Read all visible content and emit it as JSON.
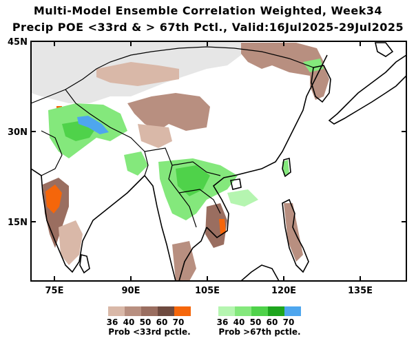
{
  "title_line1": "Multi-Model Ensemble Correlation Weighted, Week34",
  "title_line2": "Precip POE <33rd & > 67th Pctl., Valid:16Jul2025-29Jul2025",
  "lat_labels": [
    "45N",
    "30N",
    "15N"
  ],
  "lon_labels": [
    "75E",
    "90E",
    "105E",
    "120E",
    "135E"
  ],
  "legend_below": {
    "caption": "Prob <33rd pctle.",
    "values": [
      "36",
      "40",
      "50",
      "60",
      "70"
    ],
    "colors": [
      "#d9b8a8",
      "#b88f80",
      "#9a6e60",
      "#6e4a3f",
      "#f5660a"
    ]
  },
  "legend_above": {
    "caption": "Prob >67th pctle.",
    "values": [
      "36",
      "40",
      "50",
      "60",
      "70"
    ],
    "colors": [
      "#b5f5b0",
      "#84e87c",
      "#4fd24a",
      "#1ea51e",
      "#4ea6ee"
    ]
  },
  "colors": {
    "no_data": "#e6e6e6",
    "coast": "#000000",
    "border": "#000000"
  }
}
